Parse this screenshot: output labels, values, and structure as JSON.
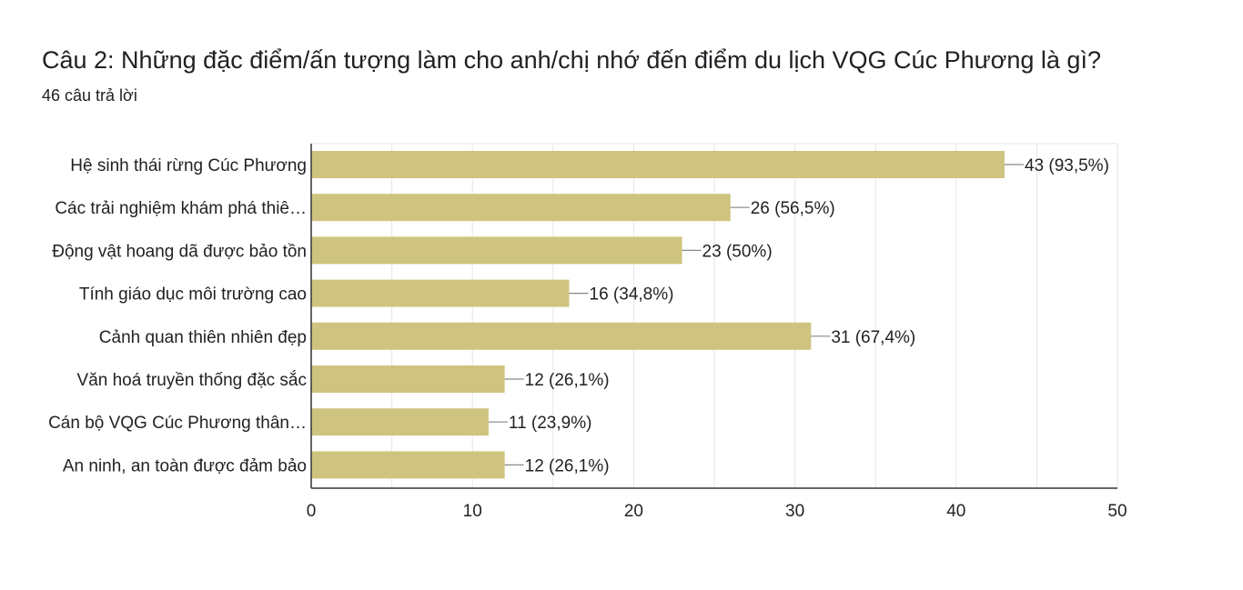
{
  "question": {
    "title": "Câu 2: Những đặc điểm/ấn tượng làm cho anh/chị nhớ đến điểm du lịch VQG Cúc Phương là gì?",
    "response_count": "46 câu trả lời"
  },
  "chart_data": {
    "type": "bar",
    "orientation": "horizontal",
    "categories": [
      "Hệ sinh thái rừng Cúc Phương",
      "Các trải nghiệm khám phá thiê…",
      "Động vật hoang dã được bảo tồn",
      "Tính giáo dục môi trường cao",
      "Cảnh quan thiên nhiên đẹp",
      "Văn hoá truyền thống đặc sắc",
      "Cán bộ VQG Cúc Phương thân…",
      "An ninh, an toàn được đảm bảo"
    ],
    "values": [
      43,
      26,
      23,
      16,
      31,
      12,
      11,
      12
    ],
    "data_labels": [
      "43 (93,5%)",
      "26 (56,5%)",
      "23 (50%)",
      "16 (34,8%)",
      "31 (67,4%)",
      "12 (26,1%)",
      "11 (23,9%)",
      "12 (26,1%)"
    ],
    "xlim": [
      0,
      50
    ],
    "xticks": [
      0,
      10,
      20,
      30,
      40,
      50
    ],
    "grid": true,
    "bar_color": "#cfc47f",
    "gridline_color": "#e6e6e6",
    "axis_color": "#333333",
    "xlabel": "",
    "ylabel": ""
  }
}
